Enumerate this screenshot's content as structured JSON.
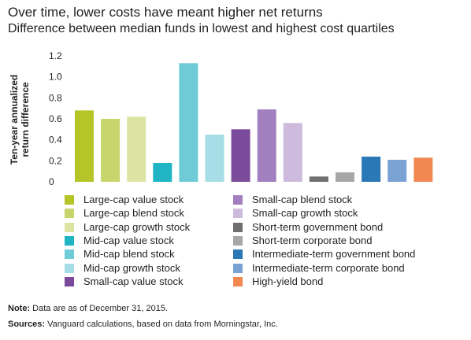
{
  "title": "Over time, lower costs have meant higher net returns",
  "subtitle": "Difference between median funds in lowest and highest cost quartiles",
  "notes": {
    "note_label": "Note:",
    "note_text": " Data are as of December 31, 2015.",
    "sources_label": "Sources:",
    "sources_text": " Vanguard calculations, based on data from Morningstar, Inc."
  },
  "chart_data": {
    "type": "bar",
    "ylabel_lines": [
      "Ten-year annualized",
      "return difference"
    ],
    "ylim": [
      0,
      1.2
    ],
    "yticks": [
      "0",
      "0.2",
      "0.4",
      "0.6",
      "0.8",
      "1.0",
      "1.2"
    ],
    "grid": false,
    "legend_position": "bottom",
    "categories": [
      "Large-cap value stock",
      "Large-cap blend stock",
      "Large-cap growth stock",
      "Mid-cap value stock",
      "Mid-cap blend stock",
      "Mid-cap growth stock",
      "Small-cap value stock",
      "Small-cap blend stock",
      "Small-cap growth stock",
      "Short-term government bond",
      "Short-term corporate bond",
      "Intermediate-term government bond",
      "Intermediate-term corporate bond",
      "High-yield bond"
    ],
    "values": [
      0.68,
      0.6,
      0.62,
      0.18,
      1.13,
      0.45,
      0.5,
      0.69,
      0.56,
      0.05,
      0.09,
      0.24,
      0.21,
      0.23
    ],
    "colors": [
      "#b5c426",
      "#c8d56c",
      "#dde4a3",
      "#1fb5c4",
      "#6fcbd6",
      "#a7dde6",
      "#7c4a9a",
      "#a27fbf",
      "#cdbadc",
      "#6f6f6f",
      "#a7a7a7",
      "#2b78b6",
      "#7aa3d4",
      "#f28851"
    ]
  }
}
